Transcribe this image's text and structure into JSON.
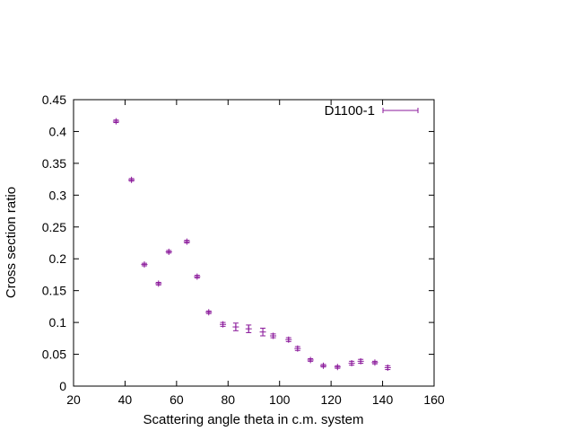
{
  "chart_data": {
    "type": "scatter",
    "title": "",
    "xlabel": "Scattering angle theta in c.m. system",
    "ylabel": "Cross section ratio",
    "xlim": [
      20,
      160
    ],
    "ylim": [
      0,
      0.45
    ],
    "xticks": [
      20,
      40,
      60,
      80,
      100,
      120,
      140,
      160
    ],
    "yticks": [
      0,
      0.05,
      0.1,
      0.15,
      0.2,
      0.25,
      0.3,
      0.35,
      0.4,
      0.45
    ],
    "xtick_labels": [
      "20",
      "40",
      "60",
      "80",
      "100",
      "120",
      "140",
      "160"
    ],
    "ytick_labels": [
      "0",
      "0.05",
      "0.1",
      "0.15",
      "0.2",
      "0.25",
      "0.3",
      "0.35",
      "0.4",
      "0.45"
    ],
    "grid": false,
    "legend_position": "top-right",
    "series_color": "#8b1a9b",
    "series": [
      {
        "name": "D1100-1",
        "marker": "plus",
        "error_bars": true,
        "x": [
          36.5,
          42.5,
          47.5,
          53.0,
          57.0,
          64.0,
          68.0,
          72.5,
          78.0,
          83.0,
          88.0,
          93.5,
          97.5,
          103.5,
          107.0,
          112.0,
          117.0,
          122.5,
          128.0,
          131.5,
          137.0,
          142.0
        ],
        "y": [
          0.416,
          0.324,
          0.191,
          0.161,
          0.211,
          0.227,
          0.172,
          0.116,
          0.097,
          0.093,
          0.09,
          0.085,
          0.079,
          0.073,
          0.059,
          0.041,
          0.032,
          0.03,
          0.036,
          0.039,
          0.037,
          0.029
        ],
        "yerr": [
          0.002,
          0.002,
          0.002,
          0.002,
          0.002,
          0.002,
          0.002,
          0.002,
          0.003,
          0.006,
          0.006,
          0.006,
          0.003,
          0.003,
          0.003,
          0.002,
          0.002,
          0.002,
          0.003,
          0.003,
          0.002,
          0.003
        ]
      }
    ]
  }
}
